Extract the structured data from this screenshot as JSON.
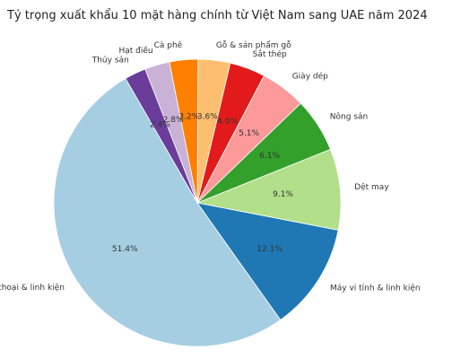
{
  "chart_data": {
    "type": "pie",
    "title": "Tỷ trọng xuất khẩu 10 mặt hàng chính từ Việt Nam sang UAE năm 2024",
    "start_angle": 120,
    "direction": "counterclockwise",
    "slices": [
      {
        "label": "Điện thoại & linh kiện",
        "value": 51.4,
        "pct_text": "51.4%",
        "color": "#a6cee3"
      },
      {
        "label": "Máy vi tính & linh kiện",
        "value": 12.1,
        "pct_text": "12.1%",
        "color": "#1f78b4"
      },
      {
        "label": "Dệt may",
        "value": 9.1,
        "pct_text": "9.1%",
        "color": "#b2df8a"
      },
      {
        "label": "Nông sản",
        "value": 6.1,
        "pct_text": "6.1%",
        "color": "#33a02c"
      },
      {
        "label": "Giày dép",
        "value": 5.1,
        "pct_text": "5.1%",
        "color": "#fb9a99"
      },
      {
        "label": "Sắt thép",
        "value": 4.0,
        "pct_text": "4.0%",
        "color": "#e31a1c"
      },
      {
        "label": "Gỗ & sản phẩm gỗ",
        "value": 3.6,
        "pct_text": "3.6%",
        "color": "#fdbf6f"
      },
      {
        "label": "Cà phê",
        "value": 3.2,
        "pct_text": "3.2%",
        "color": "#ff7f00"
      },
      {
        "label": "Hạt điều",
        "value": 2.8,
        "pct_text": "2.8%",
        "color": "#cab2d6"
      },
      {
        "label": "Thủy sản",
        "value": 2.4,
        "pct_text": "2.4%",
        "color": "#6a3d9a"
      }
    ]
  }
}
